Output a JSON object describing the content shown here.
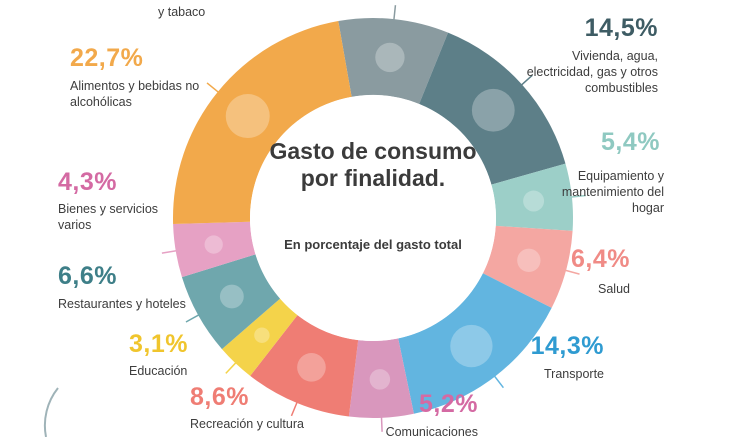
{
  "chart_data": {
    "type": "pie",
    "donut": true,
    "title": "Gasto de consumo por finalidad.",
    "subtitle": "En porcentaje del gasto total",
    "unit": "%",
    "slices": [
      {
        "label": "Bebidas alcohólicas y tabaco",
        "partial_label": "y tabaco",
        "value": null,
        "color": "#8a9ba0",
        "icon": "bottle-icon"
      },
      {
        "label": "Vivienda, agua, electricidad, gas y otros combustibles",
        "value": 14.5,
        "value_text": "14,5%",
        "color": "#5d7f88",
        "icon": "key-bulb-icon"
      },
      {
        "label": "Equipamiento y mantenimiento del hogar",
        "value": 5.4,
        "value_text": "5,4%",
        "color": "#9ccfc8",
        "icon": "washing-machine-icon"
      },
      {
        "label": "Salud",
        "value": 6.4,
        "value_text": "6,4%",
        "color": "#f4a7a2",
        "icon": "medical-cross-icon"
      },
      {
        "label": "Transporte",
        "value": 14.3,
        "value_text": "14,3%",
        "color": "#62b5e0",
        "icon": "car-icon"
      },
      {
        "label": "Comunicaciones",
        "value": 5.2,
        "value_text": "5,2%",
        "color": "#d997bd",
        "icon": "phone-icon"
      },
      {
        "label": "Recreación y cultura",
        "value": 8.6,
        "value_text": "8,6%",
        "color": "#ef7d74",
        "icon": "guitar-ball-icon"
      },
      {
        "label": "Educación",
        "value": 3.1,
        "value_text": "3,1%",
        "color": "#f4d34a",
        "icon": "folder-icon"
      },
      {
        "label": "Restaurantes y hoteles",
        "value": 6.6,
        "value_text": "6,6%",
        "color": "#6fa7ad",
        "icon": "luggage-icon"
      },
      {
        "label": "Bienes y servicios varios",
        "value": 4.3,
        "value_text": "4,3%",
        "color": "#e6a1c4",
        "icon": "scissors-icon"
      },
      {
        "label": "Alimentos y bebidas no alcohólicas",
        "value": 22.7,
        "value_text": "22,7%",
        "color": "#f2a94b",
        "icon": "chicken-drink-icon"
      }
    ]
  }
}
